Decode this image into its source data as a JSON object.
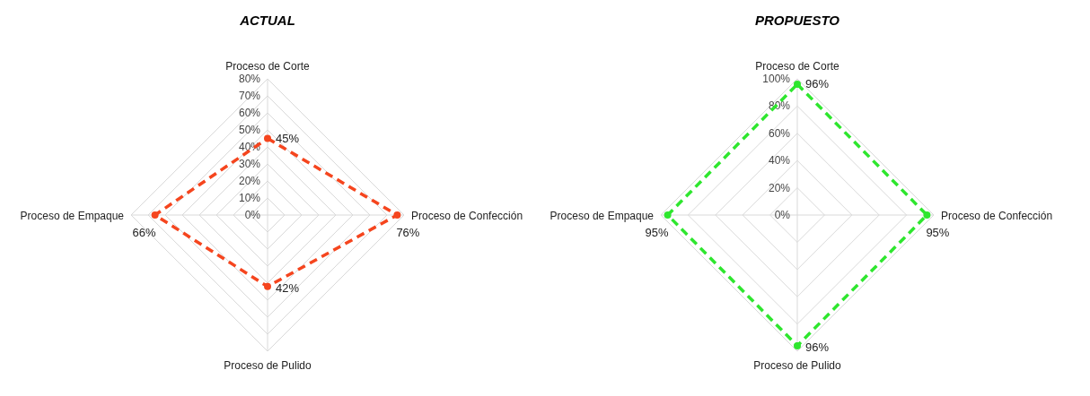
{
  "chart_data": [
    {
      "type": "radar",
      "title": "ACTUAL",
      "categories": [
        "Proceso de Corte",
        "Proceso de Confección",
        "Proceso de Pulido",
        "Proceso de Empaque"
      ],
      "ylim": [
        0,
        80
      ],
      "yticks": [
        {
          "value": 0,
          "label": "0%"
        },
        {
          "value": 10,
          "label": "10%"
        },
        {
          "value": 20,
          "label": "20%"
        },
        {
          "value": 30,
          "label": "30%"
        },
        {
          "value": 40,
          "label": "40%"
        },
        {
          "value": 50,
          "label": "50%"
        },
        {
          "value": 60,
          "label": "60%"
        },
        {
          "value": 70,
          "label": "70%"
        },
        {
          "value": 80,
          "label": "80%"
        }
      ],
      "grid": true,
      "marker": "circle",
      "line_style": "dashed",
      "series": [
        {
          "color": "#f5451e",
          "values": [
            45,
            76,
            42,
            66
          ],
          "value_labels": [
            "45%",
            "76%",
            "42%",
            "66%"
          ]
        }
      ]
    },
    {
      "type": "radar",
      "title": "PROPUESTO",
      "categories": [
        "Proceso de Corte",
        "Proceso de Confección",
        "Proceso de Pulido",
        "Proceso de Empaque"
      ],
      "ylim": [
        0,
        100
      ],
      "yticks": [
        {
          "value": 0,
          "label": "0%"
        },
        {
          "value": 20,
          "label": "20%"
        },
        {
          "value": 40,
          "label": "40%"
        },
        {
          "value": 60,
          "label": "60%"
        },
        {
          "value": 80,
          "label": "80%"
        },
        {
          "value": 100,
          "label": "100%"
        }
      ],
      "grid": true,
      "marker": "circle",
      "line_style": "dashed",
      "series": [
        {
          "color": "#2ee62e",
          "values": [
            96,
            95,
            96,
            95
          ],
          "value_labels": [
            "96%",
            "95%",
            "96%",
            "95%"
          ]
        }
      ]
    }
  ]
}
